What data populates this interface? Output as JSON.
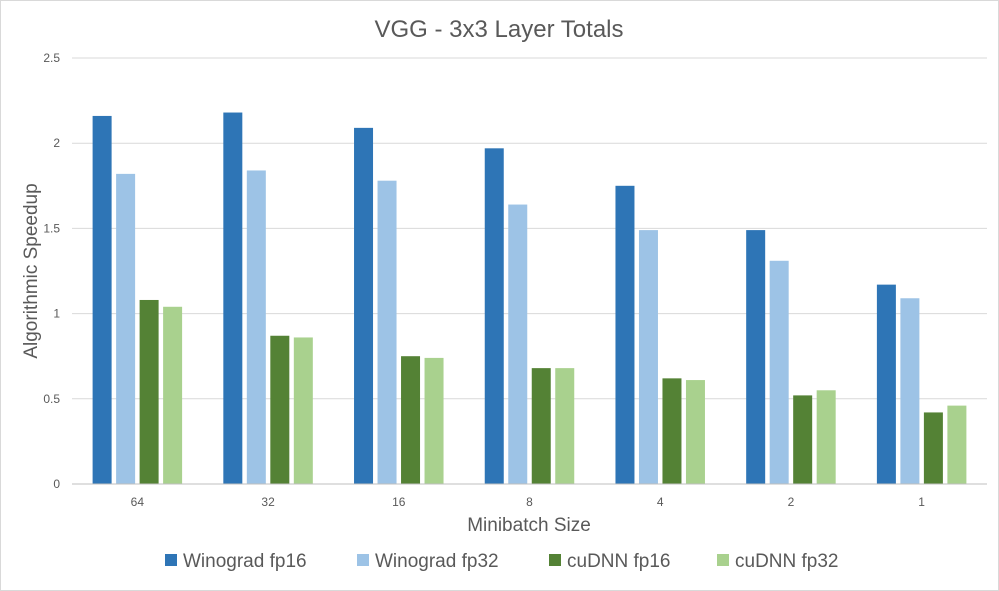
{
  "chart_data": {
    "type": "bar",
    "title": "VGG - 3x3 Layer Totals",
    "xlabel": "Minibatch Size",
    "ylabel": "Algorithmic Speedup",
    "categories": [
      "64",
      "32",
      "16",
      "8",
      "4",
      "2",
      "1"
    ],
    "ylim": [
      0,
      2.5
    ],
    "yticks": [
      0,
      0.5,
      1,
      1.5,
      2,
      2.5
    ],
    "ytick_labels": [
      "0",
      "0.5",
      "1",
      "1.5",
      "2",
      "2.5"
    ],
    "grid": true,
    "legend_position": "bottom",
    "series": [
      {
        "name": "Winograd fp16",
        "color": "#2e75b6",
        "values": [
          2.16,
          2.18,
          2.09,
          1.97,
          1.75,
          1.49,
          1.17
        ]
      },
      {
        "name": "Winograd fp32",
        "color": "#9dc3e6",
        "values": [
          1.82,
          1.84,
          1.78,
          1.64,
          1.49,
          1.31,
          1.09
        ]
      },
      {
        "name": "cuDNN fp16",
        "color": "#548235",
        "values": [
          1.08,
          0.87,
          0.75,
          0.68,
          0.62,
          0.52,
          0.42
        ]
      },
      {
        "name": "cuDNN fp32",
        "color": "#a9d18e",
        "values": [
          1.04,
          0.86,
          0.74,
          0.68,
          0.61,
          0.55,
          0.46
        ]
      }
    ]
  }
}
